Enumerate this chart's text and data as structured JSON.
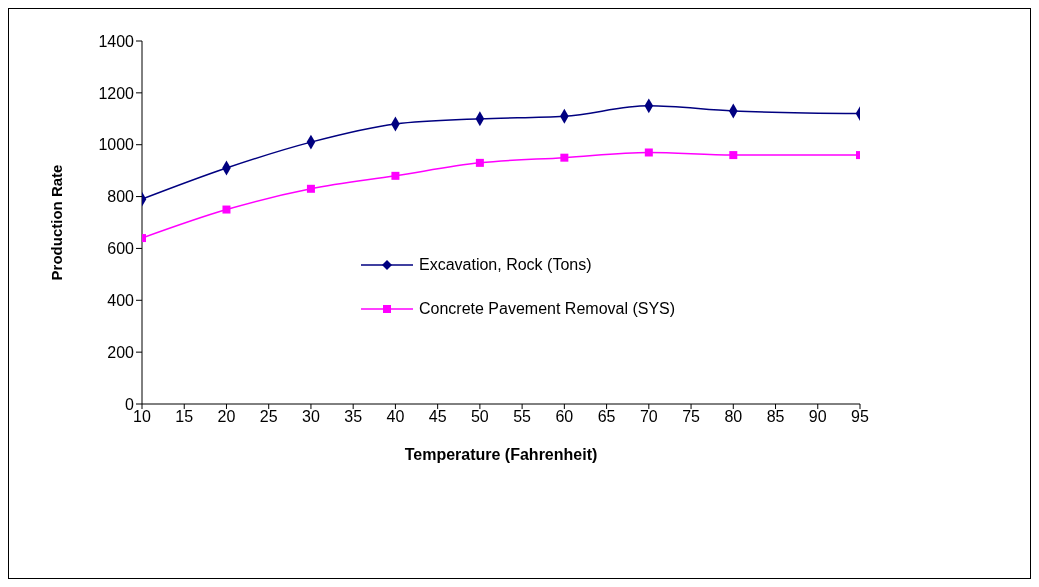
{
  "chart_data": {
    "type": "line",
    "xlabel": "Temperature (Fahrenheit)",
    "ylabel": "Production Rate",
    "x": [
      10,
      20,
      30,
      40,
      50,
      60,
      70,
      80,
      95
    ],
    "xlim": [
      10,
      95
    ],
    "xticks": [
      10,
      15,
      20,
      25,
      30,
      35,
      40,
      45,
      50,
      55,
      60,
      65,
      70,
      75,
      80,
      85,
      90,
      95
    ],
    "ylim": [
      0,
      1400
    ],
    "yticks": [
      0,
      200,
      400,
      600,
      800,
      1000,
      1200,
      1400
    ],
    "grid": false,
    "legend": "center",
    "line_style": "solid",
    "series": [
      {
        "name": "Excavation, Rock (Tons)",
        "color": "#000080",
        "marker": "diamond",
        "values": [
          790,
          910,
          1010,
          1080,
          1100,
          1110,
          1150,
          1130,
          1120
        ]
      },
      {
        "name": "Concrete Pavement Removal (SYS)",
        "color": "#ff00ff",
        "marker": "square",
        "values": [
          640,
          750,
          830,
          880,
          930,
          950,
          970,
          960,
          960
        ]
      }
    ]
  }
}
